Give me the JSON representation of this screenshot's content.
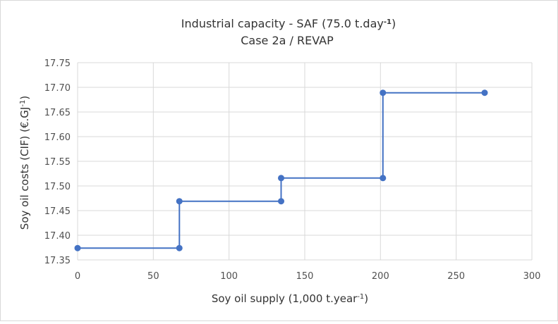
{
  "chart_data": {
    "type": "line",
    "title": "Industrial capacity - SAF (75.0 t.day",
    "title_sup": "-1",
    "title_close": ")",
    "subtitle": "Case 2a / REVAP",
    "xlabel": "Soy oil supply (1,000 t.year",
    "xlabel_sup": "-1",
    "xlabel_close": ")",
    "ylabel": "Soy oil costs (CIF) (€.GJ",
    "ylabel_sup": "-1",
    "ylabel_close": ")",
    "xlim": [
      0,
      300
    ],
    "ylim": [
      17.35,
      17.75
    ],
    "x_ticks": [
      "0",
      "50",
      "100",
      "150",
      "200",
      "250",
      "300"
    ],
    "y_ticks": [
      "17.35",
      "17.40",
      "17.45",
      "17.50",
      "17.55",
      "17.60",
      "17.65",
      "17.70",
      "17.75"
    ],
    "grid": true,
    "series": [
      {
        "color": "#4472c4",
        "points": [
          [
            0,
            17.374
          ],
          [
            67.2,
            17.374
          ],
          [
            67.2,
            17.469
          ],
          [
            134.4,
            17.469
          ],
          [
            134.4,
            17.516
          ],
          [
            201.6,
            17.516
          ],
          [
            201.6,
            17.689
          ],
          [
            268.8,
            17.689
          ]
        ],
        "markers": [
          [
            0,
            17.374
          ],
          [
            67.2,
            17.374
          ],
          [
            67.2,
            17.469
          ],
          [
            134.4,
            17.469
          ],
          [
            134.4,
            17.516
          ],
          [
            201.6,
            17.516
          ],
          [
            201.6,
            17.689
          ],
          [
            268.8,
            17.689
          ]
        ]
      }
    ]
  }
}
